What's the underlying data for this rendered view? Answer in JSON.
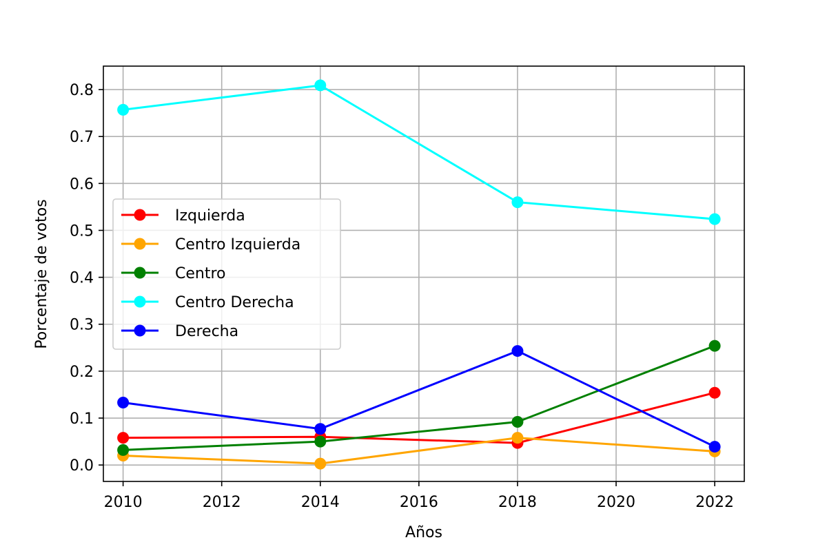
{
  "chart_data": {
    "type": "line",
    "title": "",
    "xlabel": "Años",
    "ylabel": "Porcentaje de votos",
    "x": [
      2010,
      2014,
      2018,
      2022
    ],
    "xlim": [
      2009.6,
      2022.6
    ],
    "ylim": [
      -0.035,
      0.85
    ],
    "xticks": [
      "2010",
      "2012",
      "2014",
      "2016",
      "2018",
      "2020",
      "2022"
    ],
    "yticks": [
      "0.0",
      "0.1",
      "0.2",
      "0.3",
      "0.4",
      "0.5",
      "0.6",
      "0.7",
      "0.8"
    ],
    "grid": true,
    "legend_position": "center-left",
    "series": [
      {
        "name": "Izquierda",
        "color": "#ff0000",
        "values": [
          0.058,
          0.06,
          0.047,
          0.154
        ]
      },
      {
        "name": "Centro Izquierda",
        "color": "#ffa500",
        "values": [
          0.02,
          0.003,
          0.058,
          0.029
        ]
      },
      {
        "name": "Centro",
        "color": "#008000",
        "values": [
          0.032,
          0.05,
          0.092,
          0.254
        ]
      },
      {
        "name": "Centro Derecha",
        "color": "#00ffff",
        "values": [
          0.757,
          0.809,
          0.56,
          0.524
        ]
      },
      {
        "name": "Derecha",
        "color": "#0000ff",
        "values": [
          0.133,
          0.077,
          0.243,
          0.039
        ]
      }
    ]
  }
}
